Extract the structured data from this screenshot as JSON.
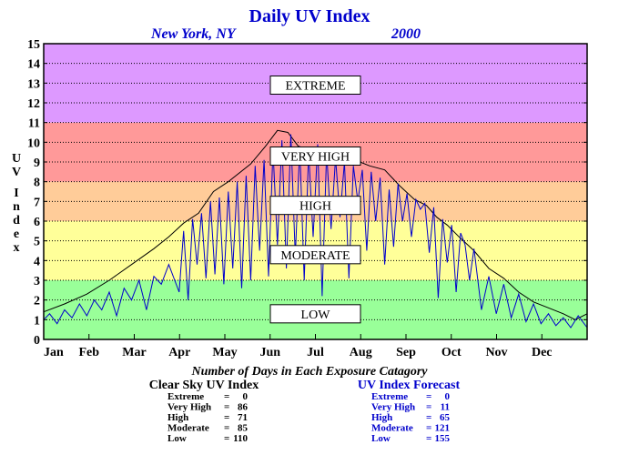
{
  "chart_data": {
    "type": "line",
    "title": "Daily UV Index",
    "location": "New York, NY",
    "year": "2000",
    "ylabel": "UV Index",
    "xlabel": "",
    "ylim": [
      0,
      15
    ],
    "yticks": [
      "0",
      "1",
      "2",
      "3",
      "4",
      "5",
      "6",
      "7",
      "8",
      "9",
      "10",
      "11",
      "12",
      "13",
      "14",
      "15"
    ],
    "months": [
      "Jan",
      "Feb",
      "Mar",
      "Apr",
      "May",
      "Jun",
      "Jul",
      "Aug",
      "Sep",
      "Oct",
      "Nov",
      "Dec"
    ],
    "grid": true,
    "bands": [
      {
        "label": "LOW",
        "from": 0,
        "to": 3,
        "color": "#99ff99"
      },
      {
        "label": "MODERATE",
        "from": 3,
        "to": 6,
        "color": "#ffff99"
      },
      {
        "label": "HIGH",
        "from": 6,
        "to": 8,
        "color": "#ffcc99"
      },
      {
        "label": "VERY HIGH",
        "from": 8,
        "to": 11,
        "color": "#ff9999"
      },
      {
        "label": "EXTREME",
        "from": 11,
        "to": 15,
        "color": "#dd99ff"
      }
    ],
    "band_label_values": {
      "EXTREME": 12.9,
      "VERY HIGH": 9.3,
      "HIGH": 6.8,
      "MODERATE": 4.3,
      "LOW": 1.3
    },
    "series": [
      {
        "role": "clear_sky",
        "color": "#000000",
        "x": [
          1,
          15,
          30,
          45,
          60,
          75,
          85,
          95,
          105,
          115,
          125,
          140,
          150,
          158,
          165,
          172,
          180,
          190,
          200,
          210,
          220,
          230,
          240,
          250,
          258,
          265,
          272,
          280,
          290,
          300,
          310,
          320,
          330,
          340,
          350,
          358,
          366
        ],
        "values": [
          1.4,
          1.8,
          2.3,
          3.0,
          3.8,
          4.6,
          5.2,
          5.9,
          6.4,
          7.5,
          8.0,
          8.9,
          9.8,
          10.6,
          10.5,
          9.8,
          9.6,
          9.4,
          9.2,
          9.1,
          8.8,
          8.6,
          7.8,
          7.1,
          6.8,
          6.2,
          5.8,
          5.2,
          4.5,
          3.6,
          3.1,
          2.4,
          1.9,
          1.6,
          1.3,
          1.0,
          1.3
        ]
      },
      {
        "role": "forecast",
        "color": "#0000cc",
        "x": [
          1,
          5,
          10,
          15,
          20,
          25,
          30,
          35,
          40,
          45,
          50,
          55,
          60,
          65,
          70,
          75,
          80,
          85,
          92,
          95,
          98,
          101,
          104,
          107,
          110,
          113,
          116,
          119,
          122,
          125,
          128,
          131,
          134,
          137,
          140,
          143,
          146,
          149,
          152,
          155,
          158,
          161,
          164,
          167,
          170,
          173,
          176,
          179,
          182,
          185,
          188,
          191,
          194,
          197,
          200,
          203,
          206,
          209,
          212,
          215,
          218,
          221,
          224,
          227,
          230,
          233,
          236,
          239,
          242,
          245,
          248,
          251,
          254,
          257,
          260,
          263,
          266,
          269,
          272,
          275,
          278,
          281,
          284,
          287,
          290,
          295,
          300,
          305,
          310,
          315,
          320,
          325,
          330,
          335,
          340,
          345,
          350,
          355,
          360,
          366
        ],
        "values": [
          1.0,
          1.3,
          0.8,
          1.5,
          1.1,
          1.8,
          1.2,
          2.0,
          1.5,
          2.4,
          1.2,
          2.6,
          2.0,
          3.0,
          1.5,
          3.2,
          2.8,
          3.8,
          2.4,
          5.5,
          2.0,
          6.1,
          3.8,
          6.4,
          3.1,
          7.0,
          3.3,
          7.2,
          2.8,
          7.5,
          3.6,
          8.0,
          2.6,
          8.3,
          3.0,
          8.8,
          4.5,
          9.1,
          3.2,
          9.6,
          4.8,
          10.1,
          3.6,
          10.4,
          4.2,
          9.8,
          3.0,
          9.5,
          5.2,
          9.9,
          2.2,
          9.5,
          5.6,
          9.2,
          6.2,
          9.0,
          3.1,
          8.8,
          7.0,
          8.6,
          4.5,
          8.5,
          6.0,
          8.2,
          3.8,
          7.6,
          4.7,
          7.9,
          6.0,
          7.4,
          5.2,
          7.1,
          6.6,
          6.9,
          4.4,
          6.7,
          2.1,
          6.1,
          3.9,
          5.8,
          2.4,
          5.4,
          4.8,
          3.0,
          4.6,
          1.5,
          3.2,
          1.3,
          2.8,
          1.1,
          2.3,
          0.9,
          1.8,
          0.8,
          1.3,
          0.7,
          1.1,
          0.6,
          1.2,
          0.6
        ]
      }
    ]
  },
  "stats": {
    "heading": "Number of Days in Each Exposure Catagory",
    "clear_sky": {
      "title": "Clear Sky UV Index",
      "rows": [
        {
          "label": "Extreme",
          "value": "0"
        },
        {
          "label": "Very High",
          "value": "86"
        },
        {
          "label": "High",
          "value": "71"
        },
        {
          "label": "Moderate",
          "value": "85"
        },
        {
          "label": "Low",
          "value": "110"
        }
      ]
    },
    "forecast": {
      "title": "UV Index Forecast",
      "rows": [
        {
          "label": "Extreme",
          "value": "0"
        },
        {
          "label": "Very High",
          "value": "11"
        },
        {
          "label": "High",
          "value": "65"
        },
        {
          "label": "Moderate",
          "value": "121"
        },
        {
          "label": "Low",
          "value": "155"
        }
      ]
    }
  }
}
